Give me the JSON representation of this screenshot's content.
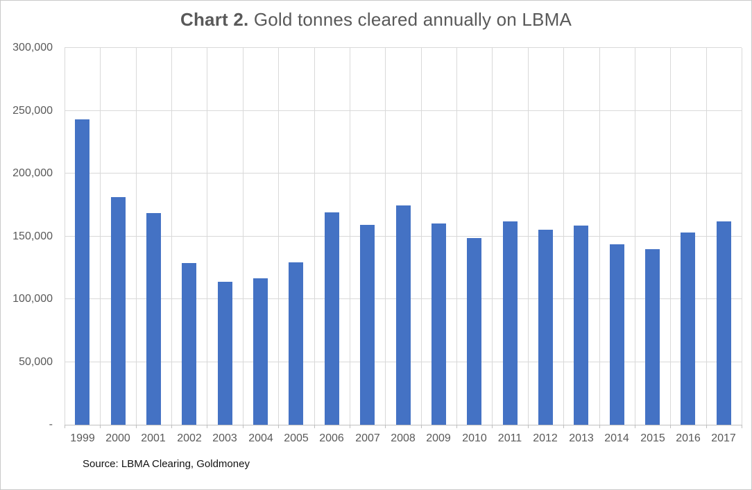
{
  "title": {
    "prefix": "Chart 2.",
    "text": " Gold tonnes cleared annually on LBMA"
  },
  "source": "Source: LBMA Clearing, Goldmoney",
  "chart_data": {
    "type": "bar",
    "title": "Chart 2. Gold tonnes cleared annually on LBMA",
    "categories": [
      "1999",
      "2000",
      "2001",
      "2002",
      "2003",
      "2004",
      "2005",
      "2006",
      "2007",
      "2008",
      "2009",
      "2010",
      "2011",
      "2012",
      "2013",
      "2014",
      "2015",
      "2016",
      "2017"
    ],
    "values": [
      243000,
      181000,
      168500,
      128500,
      114000,
      116500,
      129500,
      169000,
      159000,
      174500,
      160000,
      148500,
      162000,
      155000,
      158500,
      143500,
      140000,
      153000,
      162000
    ],
    "xlabel": "",
    "ylabel": "",
    "ylim": [
      0,
      300000
    ],
    "y_ticks": [
      0,
      50000,
      100000,
      150000,
      200000,
      250000,
      300000
    ],
    "y_tick_labels": [
      "-",
      "50,000",
      "100,000",
      "150,000",
      "200,000",
      "250,000",
      "300,000"
    ],
    "grid": {
      "horizontal": true,
      "vertical": true
    },
    "legend": "none",
    "bar_color": "#4472C4"
  },
  "colors": {
    "bar": "#4472C4",
    "gridline": "#D9D9D9",
    "axis": "#BFBFBF",
    "label": "#595959",
    "title": "#595959",
    "source": "#111111",
    "page_border": "#C9C9C9"
  }
}
